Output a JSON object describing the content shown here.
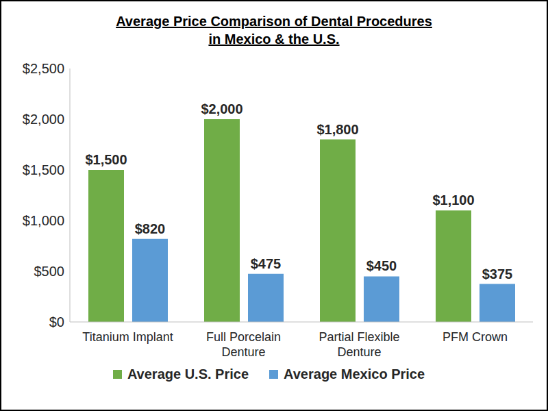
{
  "chart_data": {
    "type": "bar",
    "title": "Average Price Comparison of Dental Procedures\nin Mexico & the U.S.",
    "categories": [
      "Titanium Implant",
      "Full Porcelain Denture",
      "Partial Flexible Denture",
      "PFM Crown"
    ],
    "series": [
      {
        "name": "Average U.S. Price",
        "color": "#70ad47",
        "values": [
          1500,
          2000,
          1800,
          1100
        ],
        "value_labels": [
          "$1,500",
          "$2,000",
          "$1,800",
          "$1,100"
        ]
      },
      {
        "name": "Average Mexico Price",
        "color": "#5b9bd5",
        "values": [
          820,
          475,
          450,
          375
        ],
        "value_labels": [
          "$820",
          "$475",
          "$450",
          "$375"
        ]
      }
    ],
    "ylim": [
      0,
      2500
    ],
    "yticks": [
      {
        "value": 0,
        "label": "$0"
      },
      {
        "value": 500,
        "label": "$500"
      },
      {
        "value": 1000,
        "label": "$1,000"
      },
      {
        "value": 1500,
        "label": "$1,500"
      },
      {
        "value": 2000,
        "label": "$2,000"
      },
      {
        "value": 2500,
        "label": "$2,500"
      }
    ],
    "grid": false,
    "legend": "bottom",
    "data_labels": true
  }
}
